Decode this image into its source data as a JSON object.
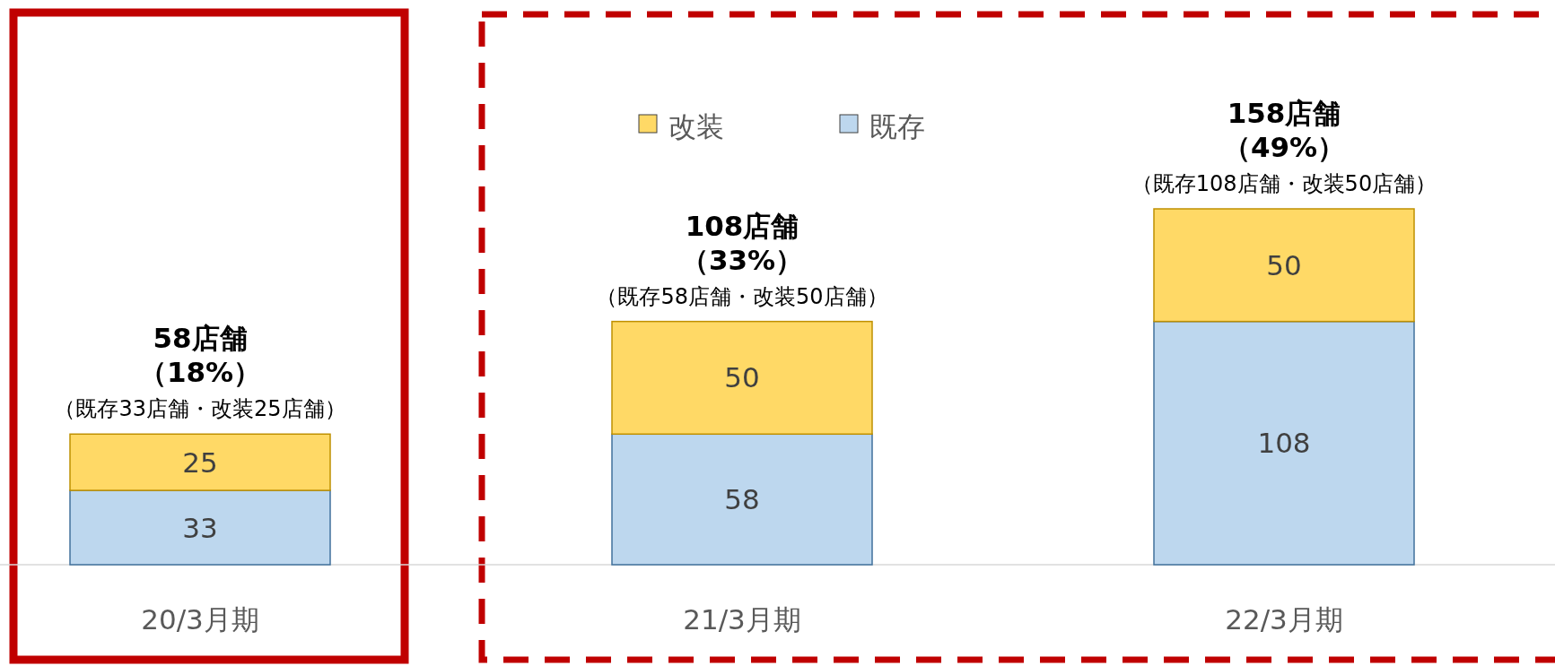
{
  "chart_data": {
    "type": "bar",
    "stacked": true,
    "categories": [
      "20/3月期",
      "21/3月期",
      "22/3月期"
    ],
    "series": [
      {
        "name": "既存",
        "color": "#bdd7ee",
        "values": [
          33,
          58,
          108
        ]
      },
      {
        "name": "改装",
        "color": "#ffd966",
        "values": [
          25,
          50,
          50
        ]
      }
    ],
    "data_labels": true,
    "totals": [
      "58店舗",
      "108店舗",
      "158店舗"
    ],
    "annotations": [
      {
        "text": "（18%）",
        "x": "20/3月期",
        "y": 58
      },
      {
        "text": "（既存33店舗・改装25店舗）",
        "x": "20/3月期",
        "y": 58
      },
      {
        "text": "（33%）",
        "x": "21/3月期",
        "y": 108
      },
      {
        "text": "（既存58店舗・改装50店舗）",
        "x": "21/3月期",
        "y": 108
      },
      {
        "text": "（49%）",
        "x": "22/3月期",
        "y": 158
      },
      {
        "text": "（既存108店舗・改装50店舗）",
        "x": "22/3月期",
        "y": 158
      }
    ],
    "legend": "top"
  }
}
